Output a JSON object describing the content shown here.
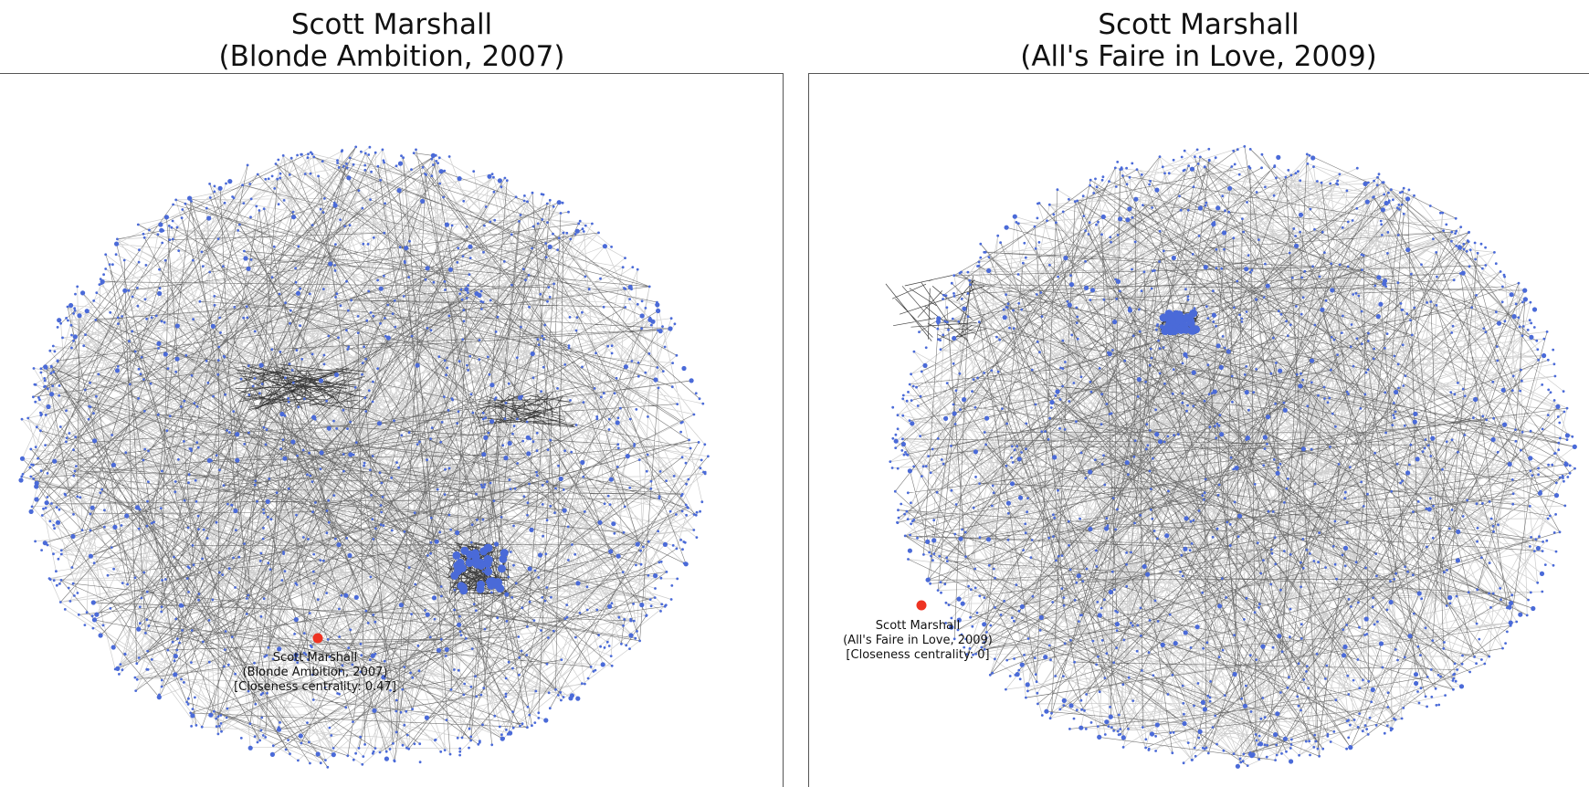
{
  "panels": [
    {
      "title_line1": "Scott Marshall",
      "title_line2": "(Blonde Ambition, 2007)",
      "highlight": {
        "name": "Scott Marshall",
        "film": "(Blonde Ambition, 2007)",
        "centrality": "[Closeness centrality: 0.47]"
      }
    },
    {
      "title_line1": "Scott Marshall",
      "title_line2": "(All's Faire in Love, 2009)",
      "highlight": {
        "name": "Scott Marshall",
        "film": "(All's Faire in Love, 2009)",
        "centrality": "[Closeness centrality: 0]"
      }
    }
  ],
  "colors": {
    "node": "#4a6ad8",
    "highlight_node": "#ee3322",
    "edge_light": "#c8c8c8",
    "edge_dark": "#222222"
  }
}
